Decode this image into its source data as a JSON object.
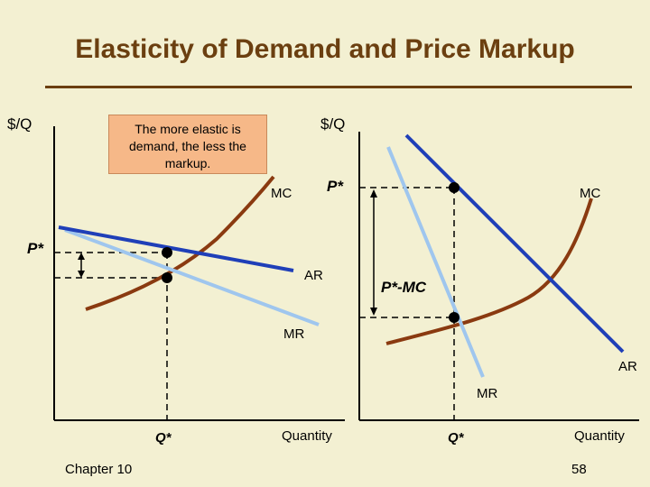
{
  "title": "Elasticity of Demand and Price Markup",
  "note": "The more elastic is demand, the less the markup.",
  "left_panel": {
    "y_axis": "$/Q",
    "x_axis": "Quantity",
    "price": "P*",
    "quantity": "Q*",
    "curves": {
      "mc": "MC",
      "ar": "AR",
      "mr": "MR"
    }
  },
  "right_panel": {
    "y_axis": "$/Q",
    "x_axis": "Quantity",
    "price": "P*",
    "quantity": "Q*",
    "markup": "P*-MC",
    "curves": {
      "mc": "MC",
      "ar": "AR",
      "mr": "MR"
    }
  },
  "footer": {
    "chapter": "Chapter 10",
    "page": "58"
  },
  "colors": {
    "title": "#6b3f10",
    "demand": "#1f3fb8",
    "mr": "#9fc6ee",
    "mc": "#8a3a10",
    "note_bg": "#f6b888"
  }
}
